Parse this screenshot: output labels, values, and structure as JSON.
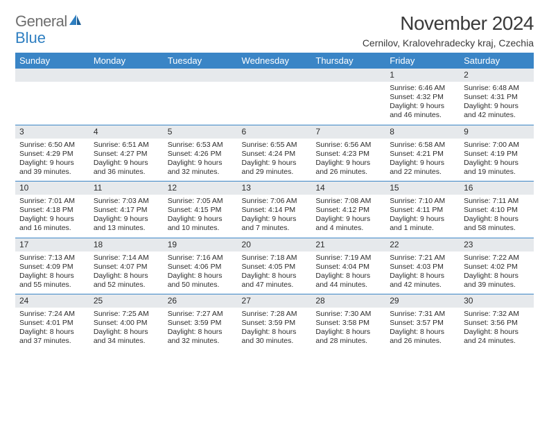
{
  "logo": {
    "text1": "General",
    "text2": "Blue"
  },
  "header": {
    "title": "November 2024",
    "location": "Cernilov, Kralovehradecky kraj, Czechia"
  },
  "colors": {
    "header_bg": "#3a85c6",
    "header_text": "#ffffff",
    "daynum_bg": "#e6e9ec",
    "row_border": "#3a85c6",
    "text": "#2b2b2b",
    "logo_gray": "#6e6e6e",
    "logo_blue": "#2f7fc1",
    "page_bg": "#ffffff"
  },
  "weekdays": [
    "Sunday",
    "Monday",
    "Tuesday",
    "Wednesday",
    "Thursday",
    "Friday",
    "Saturday"
  ],
  "weeks": [
    {
      "nums": [
        "",
        "",
        "",
        "",
        "",
        "1",
        "2"
      ],
      "data": [
        "",
        "",
        "",
        "",
        "",
        "Sunrise: 6:46 AM\nSunset: 4:32 PM\nDaylight: 9 hours\nand 46 minutes.",
        "Sunrise: 6:48 AM\nSunset: 4:31 PM\nDaylight: 9 hours\nand 42 minutes."
      ]
    },
    {
      "nums": [
        "3",
        "4",
        "5",
        "6",
        "7",
        "8",
        "9"
      ],
      "data": [
        "Sunrise: 6:50 AM\nSunset: 4:29 PM\nDaylight: 9 hours\nand 39 minutes.",
        "Sunrise: 6:51 AM\nSunset: 4:27 PM\nDaylight: 9 hours\nand 36 minutes.",
        "Sunrise: 6:53 AM\nSunset: 4:26 PM\nDaylight: 9 hours\nand 32 minutes.",
        "Sunrise: 6:55 AM\nSunset: 4:24 PM\nDaylight: 9 hours\nand 29 minutes.",
        "Sunrise: 6:56 AM\nSunset: 4:23 PM\nDaylight: 9 hours\nand 26 minutes.",
        "Sunrise: 6:58 AM\nSunset: 4:21 PM\nDaylight: 9 hours\nand 22 minutes.",
        "Sunrise: 7:00 AM\nSunset: 4:19 PM\nDaylight: 9 hours\nand 19 minutes."
      ]
    },
    {
      "nums": [
        "10",
        "11",
        "12",
        "13",
        "14",
        "15",
        "16"
      ],
      "data": [
        "Sunrise: 7:01 AM\nSunset: 4:18 PM\nDaylight: 9 hours\nand 16 minutes.",
        "Sunrise: 7:03 AM\nSunset: 4:17 PM\nDaylight: 9 hours\nand 13 minutes.",
        "Sunrise: 7:05 AM\nSunset: 4:15 PM\nDaylight: 9 hours\nand 10 minutes.",
        "Sunrise: 7:06 AM\nSunset: 4:14 PM\nDaylight: 9 hours\nand 7 minutes.",
        "Sunrise: 7:08 AM\nSunset: 4:12 PM\nDaylight: 9 hours\nand 4 minutes.",
        "Sunrise: 7:10 AM\nSunset: 4:11 PM\nDaylight: 9 hours\nand 1 minute.",
        "Sunrise: 7:11 AM\nSunset: 4:10 PM\nDaylight: 8 hours\nand 58 minutes."
      ]
    },
    {
      "nums": [
        "17",
        "18",
        "19",
        "20",
        "21",
        "22",
        "23"
      ],
      "data": [
        "Sunrise: 7:13 AM\nSunset: 4:09 PM\nDaylight: 8 hours\nand 55 minutes.",
        "Sunrise: 7:14 AM\nSunset: 4:07 PM\nDaylight: 8 hours\nand 52 minutes.",
        "Sunrise: 7:16 AM\nSunset: 4:06 PM\nDaylight: 8 hours\nand 50 minutes.",
        "Sunrise: 7:18 AM\nSunset: 4:05 PM\nDaylight: 8 hours\nand 47 minutes.",
        "Sunrise: 7:19 AM\nSunset: 4:04 PM\nDaylight: 8 hours\nand 44 minutes.",
        "Sunrise: 7:21 AM\nSunset: 4:03 PM\nDaylight: 8 hours\nand 42 minutes.",
        "Sunrise: 7:22 AM\nSunset: 4:02 PM\nDaylight: 8 hours\nand 39 minutes."
      ]
    },
    {
      "nums": [
        "24",
        "25",
        "26",
        "27",
        "28",
        "29",
        "30"
      ],
      "data": [
        "Sunrise: 7:24 AM\nSunset: 4:01 PM\nDaylight: 8 hours\nand 37 minutes.",
        "Sunrise: 7:25 AM\nSunset: 4:00 PM\nDaylight: 8 hours\nand 34 minutes.",
        "Sunrise: 7:27 AM\nSunset: 3:59 PM\nDaylight: 8 hours\nand 32 minutes.",
        "Sunrise: 7:28 AM\nSunset: 3:59 PM\nDaylight: 8 hours\nand 30 minutes.",
        "Sunrise: 7:30 AM\nSunset: 3:58 PM\nDaylight: 8 hours\nand 28 minutes.",
        "Sunrise: 7:31 AM\nSunset: 3:57 PM\nDaylight: 8 hours\nand 26 minutes.",
        "Sunrise: 7:32 AM\nSunset: 3:56 PM\nDaylight: 8 hours\nand 24 minutes."
      ]
    }
  ]
}
